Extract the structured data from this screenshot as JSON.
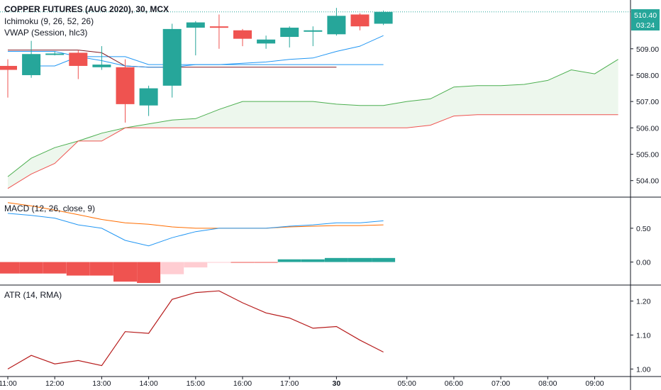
{
  "chart_data": {
    "type": "candlestick",
    "symbol": "COPPER FUTURES (AUG 2020), 30, MCX",
    "price_scale": {
      "ticks": [
        "504.00",
        "505.00",
        "506.00",
        "507.00",
        "508.00",
        "509.00"
      ],
      "last_price": "510.40",
      "countdown": "03:24",
      "ylim": [
        503.4,
        510.85
      ]
    },
    "x_axis": {
      "ticks": [
        {
          "label": "11:00",
          "bar": 0,
          "bold": false
        },
        {
          "label": "12:00",
          "bar": 2,
          "bold": false
        },
        {
          "label": "13:00",
          "bar": 4,
          "bold": false
        },
        {
          "label": "14:00",
          "bar": 6,
          "bold": false
        },
        {
          "label": "15:00",
          "bar": 8,
          "bold": false
        },
        {
          "label": "16:00",
          "bar": 10,
          "bold": false
        },
        {
          "label": "17:00",
          "bar": 12,
          "bold": false
        },
        {
          "label": "30",
          "bar": 14,
          "bold": true
        },
        {
          "label": "05:00",
          "bar": 17,
          "bold": false
        },
        {
          "label": "06:00",
          "bar": 19,
          "bold": false
        },
        {
          "label": "07:00",
          "bar": 21,
          "bold": false
        },
        {
          "label": "08:00",
          "bar": 23,
          "bold": false
        },
        {
          "label": "09:00",
          "bar": 25,
          "bold": false
        }
      ]
    },
    "candles": [
      {
        "o": 508.35,
        "h": 508.6,
        "l": 507.15,
        "c": 508.2
      },
      {
        "o": 508.0,
        "h": 509.3,
        "l": 507.9,
        "c": 508.8
      },
      {
        "o": 508.8,
        "h": 508.9,
        "l": 508.75,
        "c": 508.82
      },
      {
        "o": 508.85,
        "h": 508.95,
        "l": 507.85,
        "c": 508.35
      },
      {
        "o": 508.3,
        "h": 509.1,
        "l": 508.2,
        "c": 508.4
      },
      {
        "o": 508.3,
        "h": 508.6,
        "l": 506.2,
        "c": 506.9
      },
      {
        "o": 506.85,
        "h": 507.6,
        "l": 506.45,
        "c": 507.5
      },
      {
        "o": 507.6,
        "h": 509.95,
        "l": 507.15,
        "c": 509.75
      },
      {
        "o": 509.8,
        "h": 510.05,
        "l": 508.75,
        "c": 510.0
      },
      {
        "o": 509.85,
        "h": 510.3,
        "l": 509.0,
        "c": 509.83
      },
      {
        "o": 509.7,
        "h": 509.75,
        "l": 509.1,
        "c": 509.38
      },
      {
        "o": 509.2,
        "h": 509.5,
        "l": 509.0,
        "c": 509.35
      },
      {
        "o": 509.45,
        "h": 509.85,
        "l": 509.05,
        "c": 509.8
      },
      {
        "o": 509.65,
        "h": 509.85,
        "l": 509.1,
        "c": 509.7
      },
      {
        "o": 509.55,
        "h": 510.55,
        "l": 509.5,
        "c": 510.25
      },
      {
        "o": 510.3,
        "h": 510.35,
        "l": 509.7,
        "c": 509.85
      },
      {
        "o": 509.95,
        "h": 510.45,
        "l": 509.9,
        "c": 510.4
      }
    ],
    "indicators": {
      "ichimoku": {
        "legend": "Ichimoku (9, 26, 52, 26)",
        "conversion_line": [
          null,
          508.35,
          508.35,
          508.7,
          508.7,
          508.7,
          508.4,
          508.4,
          508.4,
          508.4,
          508.4,
          508.4,
          508.4,
          508.4,
          508.4,
          508.4,
          508.4
        ],
        "base_line": [
          508.95,
          508.95,
          508.95,
          508.95,
          508.85,
          508.35,
          508.3,
          508.3,
          508.3,
          508.3,
          508.3,
          508.3,
          508.3,
          508.3,
          508.3
        ],
        "leading_span_a": [
          504.15,
          504.85,
          505.25,
          505.5,
          505.8,
          506.0,
          506.15,
          506.3,
          506.35,
          506.7,
          507.0,
          507.0,
          507.0,
          507.0,
          506.9,
          506.85,
          506.85,
          507.0,
          507.1,
          507.55,
          507.6,
          507.6,
          507.65,
          507.8,
          508.2,
          508.05,
          508.6
        ],
        "leading_span_b": [
          503.7,
          504.25,
          504.65,
          505.5,
          505.5,
          506.0,
          506.0,
          506.0,
          506.0,
          506.0,
          506.0,
          506.0,
          506.0,
          506.0,
          506.0,
          506.0,
          506.0,
          506.0,
          506.1,
          506.45,
          506.5,
          506.5,
          506.5,
          506.5,
          506.5,
          506.5,
          506.5
        ]
      },
      "vwap": {
        "legend": "VWAP (Session, hlc3)",
        "values": [
          508.9,
          508.9,
          508.9,
          508.7,
          508.55,
          508.35,
          508.3,
          508.3,
          508.4,
          508.4,
          508.45,
          508.5,
          508.6,
          508.65,
          508.9,
          509.1,
          509.5
        ]
      },
      "macd": {
        "legend": "MACD (12, 26, close, 9)",
        "ticks": [
          "0.00",
          "0.50"
        ],
        "ylim": [
          -0.33,
          0.95
        ],
        "macd_line": [
          0.72,
          0.69,
          0.65,
          0.55,
          0.5,
          0.32,
          0.24,
          0.36,
          0.45,
          0.5,
          0.5,
          0.5,
          0.53,
          0.55,
          0.58,
          0.58,
          0.61
        ],
        "signal_line": [
          0.88,
          0.83,
          0.77,
          0.7,
          0.63,
          0.58,
          0.56,
          0.52,
          0.5,
          0.5,
          0.5,
          0.5,
          0.52,
          0.53,
          0.54,
          0.54,
          0.55
        ],
        "histogram": [
          -0.17,
          -0.17,
          -0.17,
          -0.2,
          -0.2,
          -0.29,
          -0.31,
          -0.18,
          -0.08,
          -0.01,
          -0.01,
          -0.01,
          0.04,
          0.04,
          0.06,
          0.06,
          0.06
        ]
      },
      "atr": {
        "legend": "ATR (14, RMA)",
        "ticks": [
          "1.00",
          "1.10",
          "1.20"
        ],
        "ylim": [
          0.98,
          1.245
        ],
        "values": [
          1.0,
          1.04,
          1.015,
          1.025,
          1.01,
          1.11,
          1.105,
          1.205,
          1.225,
          1.23,
          1.195,
          1.165,
          1.15,
          1.12,
          1.125,
          1.085,
          1.05
        ]
      }
    },
    "colors": {
      "up": "#26a69a",
      "down": "#ef5350",
      "hist_up_strong": "#26a69a",
      "hist_up_weak": "#b2dfdb",
      "hist_down_strong": "#ef5350",
      "hist_down_weak": "#ffcdd2",
      "conversion": "#2196f3",
      "base": "#801922",
      "leading_a": "#4caf50",
      "leading_b": "#ef5350",
      "cloud": "#e8f5e9",
      "vwap": "#2196f3",
      "macd": "#2196f3",
      "signal": "#ff6d00",
      "atr": "#b71c1c",
      "last_price_tag": "#26a69a",
      "separator": "#131722"
    }
  }
}
